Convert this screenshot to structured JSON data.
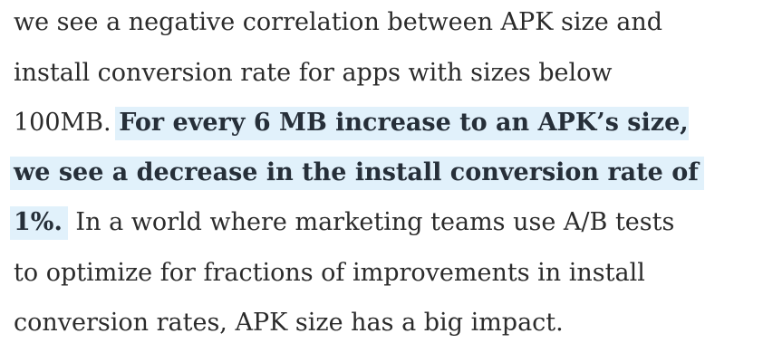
{
  "article": {
    "lines": [
      {
        "text": "we see a negative correlation between APK size and"
      },
      {
        "text": "install conversion rate for apps with sizes below"
      },
      {
        "plain": "100MB. ",
        "highlight": "For every 6 MB increase to an APK’s size,"
      },
      {
        "highlight": "we see a decrease in the install conversion rate of"
      },
      {
        "highlight": "1%.",
        "plain": " In a world where marketing teams use A/B tests"
      },
      {
        "text": "to optimize for fractions of improvements in install"
      },
      {
        "text": "conversion rates, APK size has a big impact."
      }
    ]
  },
  "colors": {
    "text": "#2b2b2b",
    "highlight_background": "#e1f1fb",
    "highlight_text": "#262f39",
    "page_background": "#ffffff"
  }
}
